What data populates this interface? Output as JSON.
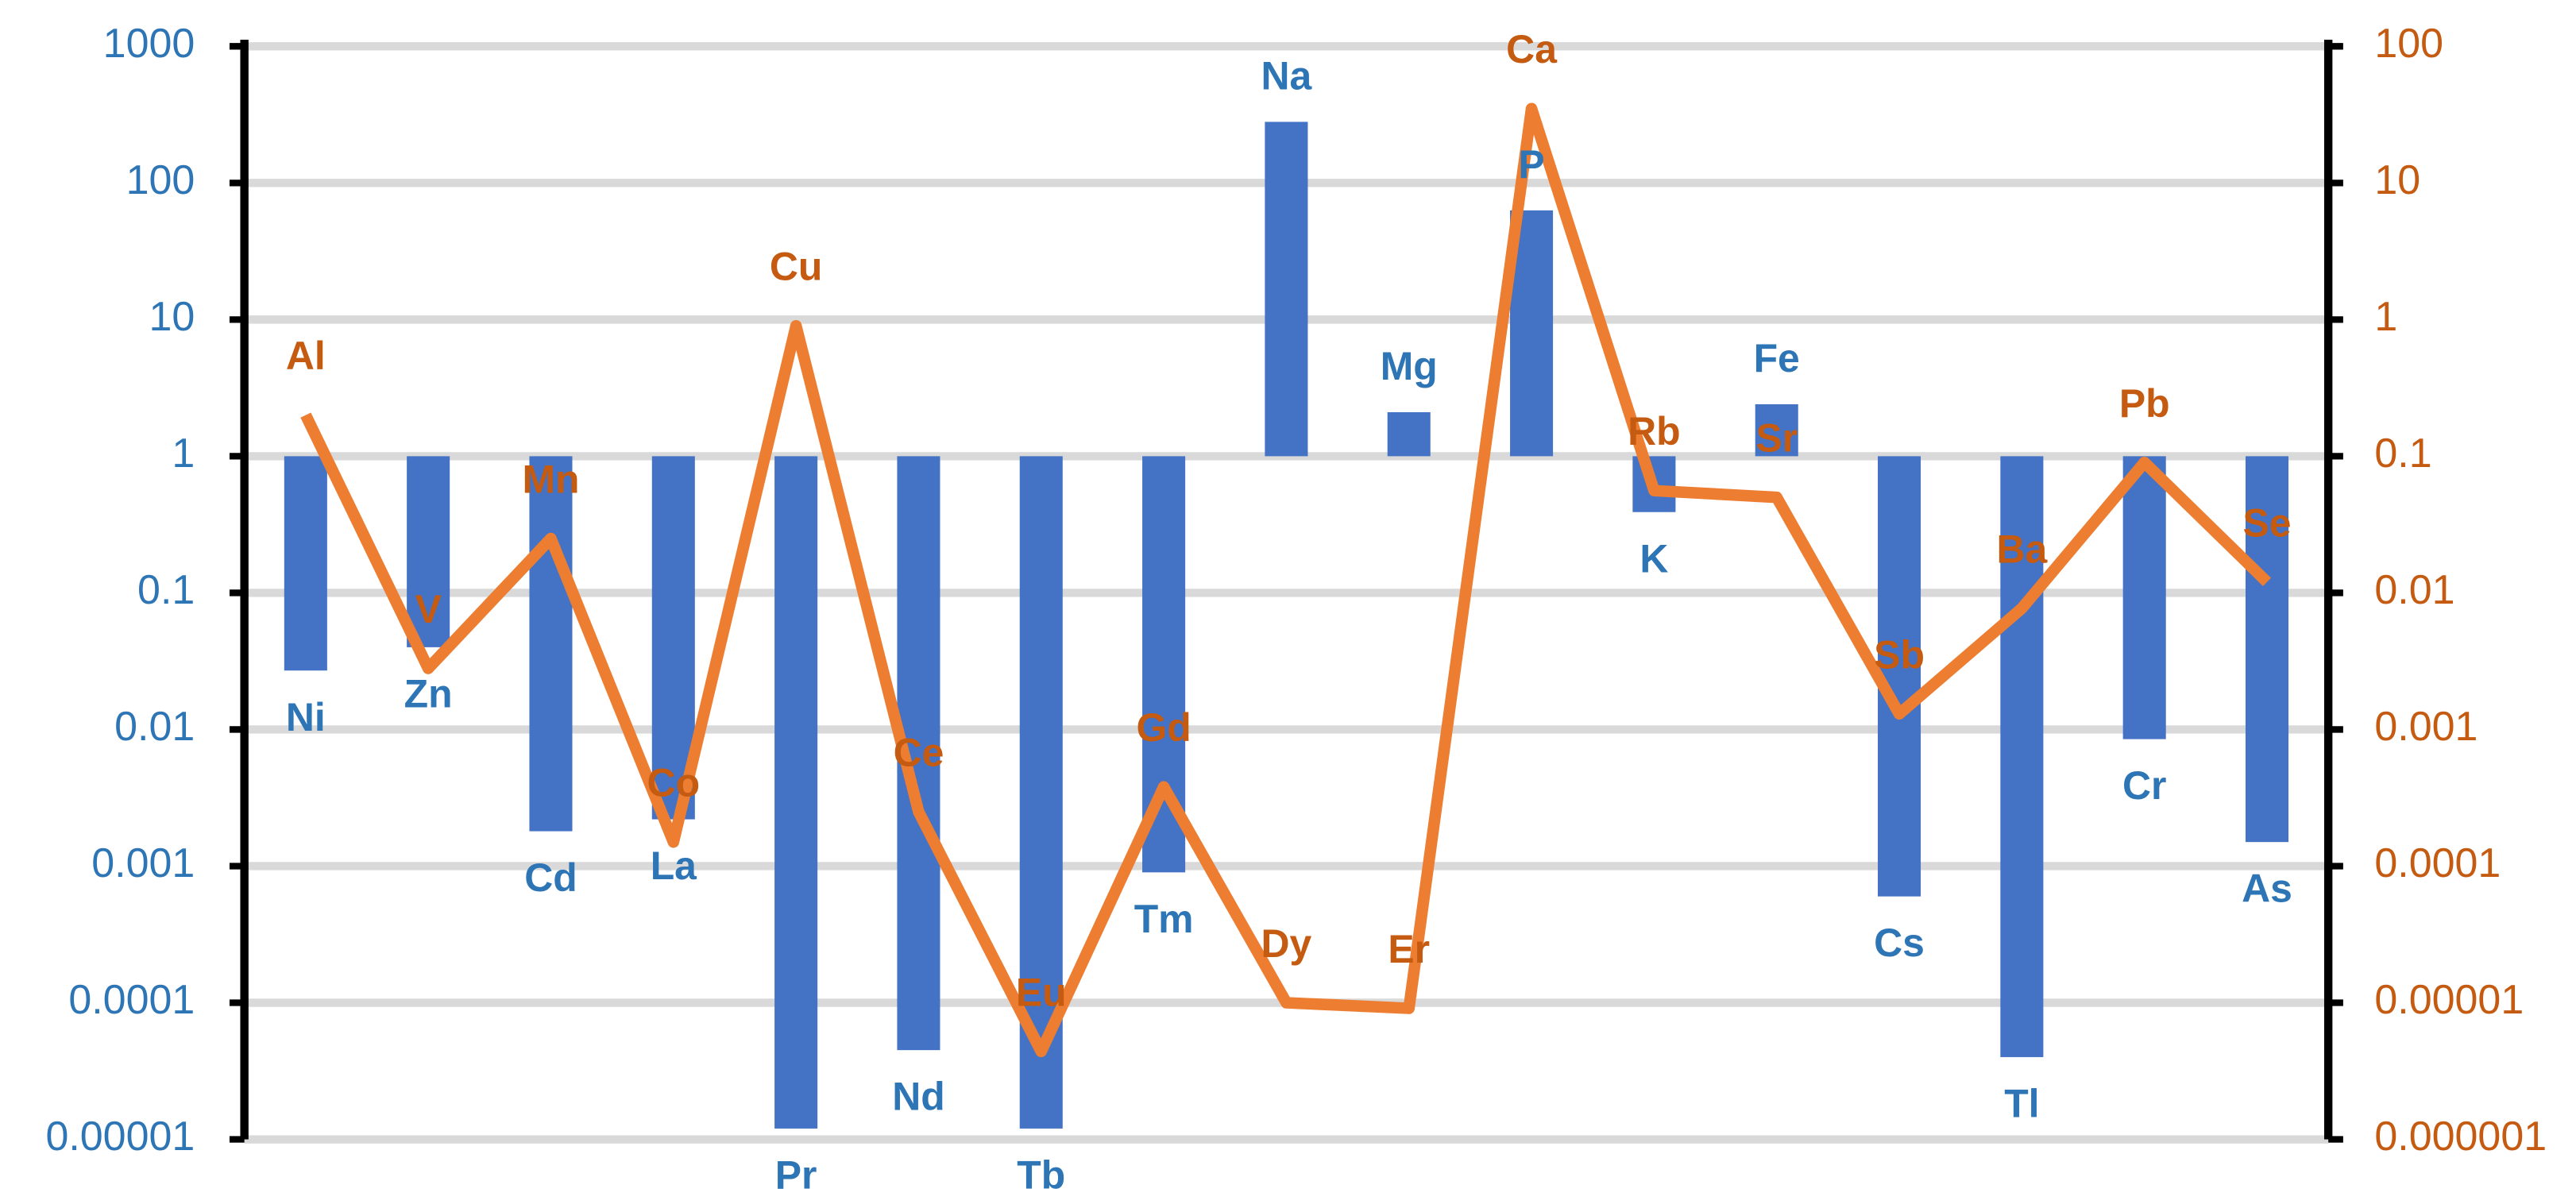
{
  "chart_data": {
    "type": "bar-line",
    "log": true,
    "grid": true,
    "ylim": [
      1e-05,
      1000
    ],
    "yticks": [
      1e-05,
      0.0001,
      0.001,
      0.01,
      0.1,
      1,
      10,
      100,
      1000
    ],
    "y2lim": [
      1e-06,
      100
    ],
    "y2ticks": [
      1e-06,
      1e-05,
      0.0001,
      0.001,
      0.01,
      0.1,
      1,
      10,
      100
    ],
    "series": [
      {
        "type": "bar",
        "color": "#4472c4",
        "label_color": "#2e75b6",
        "labels": [
          "Ni",
          "Zn",
          "Cd",
          "La",
          "Pr",
          "Nd",
          "Tb",
          "Tm",
          "Na",
          "Mg",
          "P",
          "K",
          "Fe",
          "Cs",
          "Tl",
          "Cr",
          "As"
        ],
        "values": [
          0.027,
          0.04,
          0.0018,
          0.0022,
          1.2e-05,
          4.5e-05,
          1.2e-05,
          0.0009,
          280,
          2.1,
          63,
          0.39,
          2.4,
          0.0006,
          4e-05,
          0.0085,
          0.0015
        ]
      },
      {
        "type": "line",
        "axis": "y2",
        "color": "#ed7d31",
        "label_color": "#c55a11",
        "labels": [
          "Al",
          "V",
          "Mn",
          "Co",
          "Cu",
          "Ce",
          "Eu",
          "Gd",
          "Dy",
          "Er",
          "Ca",
          "Rb",
          "Sr",
          "Sb",
          "Ba",
          "Pb",
          "Se"
        ],
        "values": [
          0.2,
          0.0028,
          0.025,
          0.00015,
          0.9,
          0.00025,
          4.4e-06,
          0.00038,
          1e-05,
          9.1e-06,
          35,
          0.056,
          0.05,
          0.0013,
          0.0077,
          0.09,
          0.012
        ]
      }
    ]
  }
}
